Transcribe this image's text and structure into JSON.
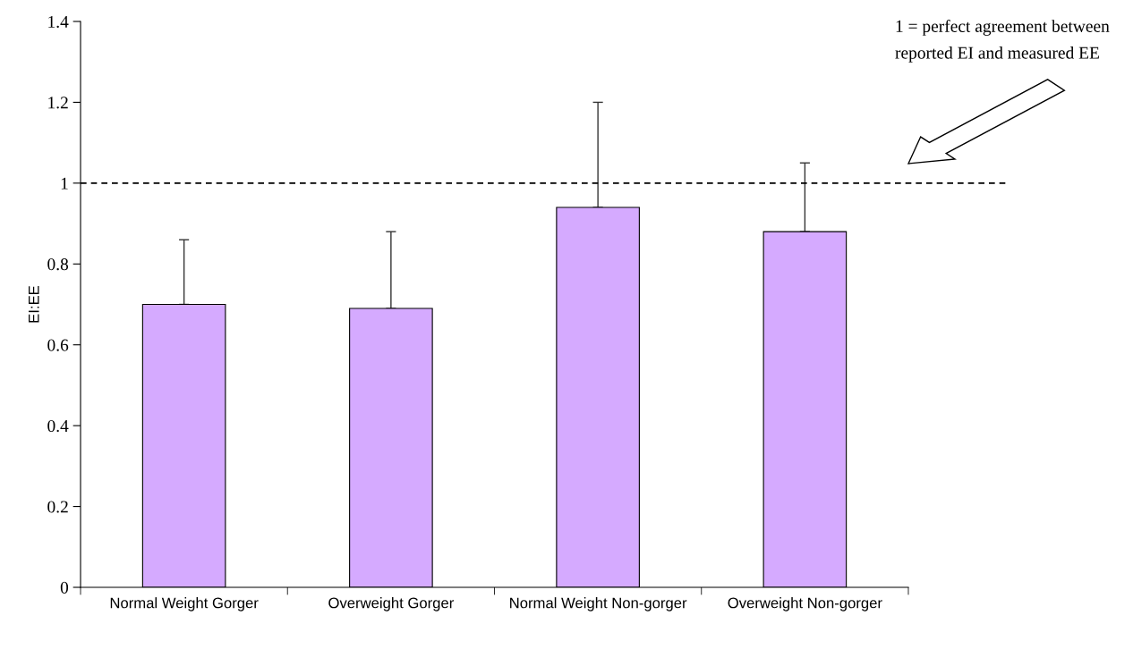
{
  "chart_data": {
    "type": "bar",
    "ylabel": "EI:EE",
    "categories": [
      "Normal Weight Gorger",
      "Overweight Gorger",
      "Normal Weight Non-gorger",
      "Overweight Non-gorger"
    ],
    "values": [
      0.7,
      0.69,
      0.94,
      0.88
    ],
    "color": "#d5aaff",
    "errors": [
      [
        0.7,
        0.86
      ],
      [
        0.69,
        0.88
      ],
      [
        0.94,
        1.2
      ],
      [
        0.88,
        1.05
      ]
    ],
    "ylim": [
      0,
      1.4
    ],
    "yticks": [
      0,
      0.2,
      0.4,
      0.6,
      0.8,
      1,
      1.2,
      1.4
    ],
    "grid": false,
    "legend": false,
    "ref_lines": [
      {
        "axis": "y",
        "value": 1,
        "line_style": "dashed",
        "color": "#000000"
      }
    ],
    "annotations": [
      "1 = perfect agreement between reported EI and measured EE"
    ]
  }
}
